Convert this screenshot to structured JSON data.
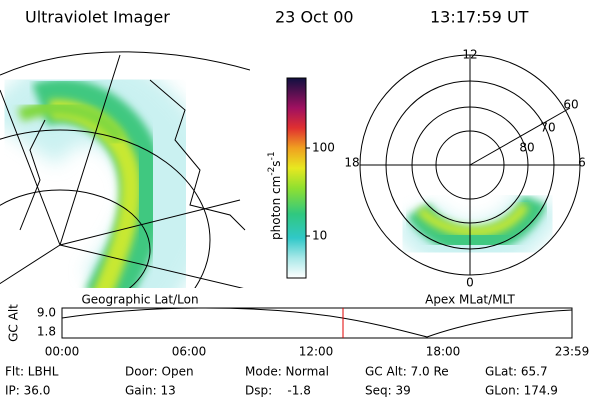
{
  "header": {
    "title": "Ultraviolet Imager",
    "date": "23 Oct 00",
    "time": "13:17:59 UT"
  },
  "colorbar": {
    "label": {
      "unit1": "photon cm",
      "exp1": "-2",
      "unit2": "s",
      "exp2": "-1"
    },
    "ticks": [
      "100",
      "10"
    ]
  },
  "map": {
    "label": "Geographic Lat/Lon"
  },
  "polar": {
    "label": "Apex MLat/MLT",
    "mlt": [
      "12",
      "18",
      "6",
      "0"
    ],
    "mlat": [
      "60",
      "70",
      "80"
    ]
  },
  "timeline": {
    "ylabel": "GC Alt",
    "yticks": [
      "9.0",
      "1.8"
    ],
    "xticks": [
      "00:00",
      "06:00",
      "12:00",
      "18:00",
      "23:59"
    ]
  },
  "footer": {
    "rows": [
      [
        "Flt: LBHL",
        "Door: Open",
        "Mode: Normal",
        "GC Alt: 7.0 Re",
        "GLat: 65.7"
      ],
      [
        "IP: 36.0",
        "Gain: 13",
        "Dsp:    -1.8",
        "Seq: 39",
        "GLon: 174.9"
      ]
    ]
  }
}
